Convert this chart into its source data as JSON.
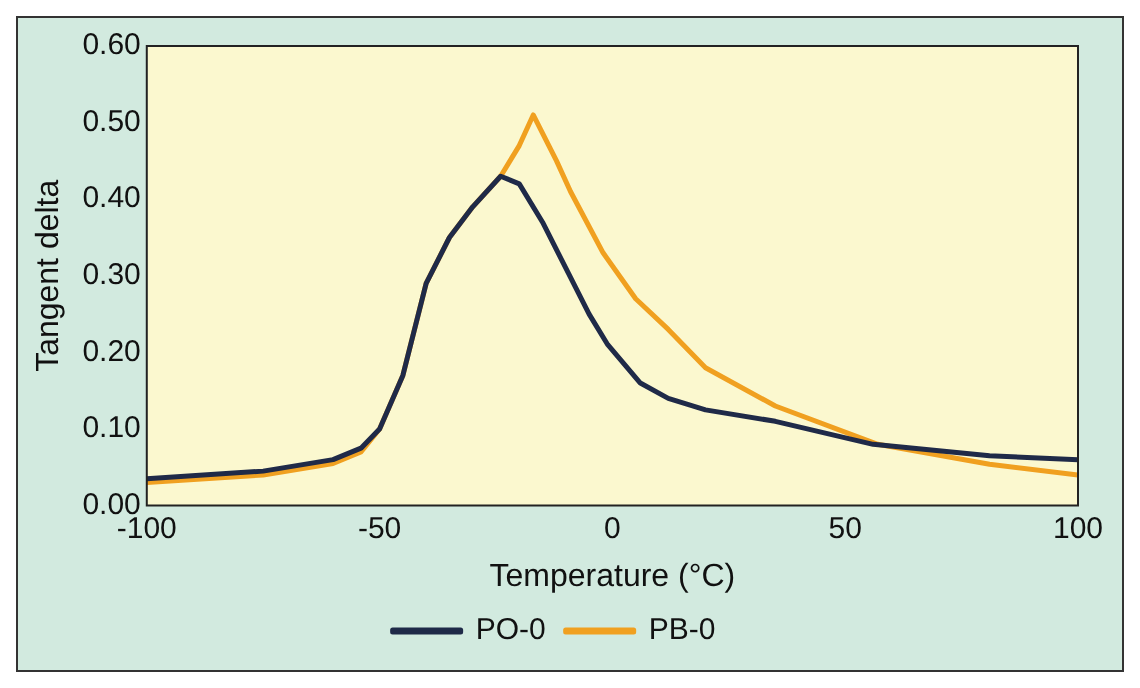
{
  "chart_data": {
    "type": "line",
    "xlabel": "Temperature (°C)",
    "ylabel": "Tangent delta",
    "xlim": [
      -100,
      100
    ],
    "xticks": [
      -100,
      -50,
      0,
      50,
      100
    ],
    "ylim": [
      0,
      0.6
    ],
    "yticks": [
      {
        "value": 0,
        "label": "0.00"
      },
      {
        "value": 0.1,
        "label": "0.10"
      },
      {
        "value": 0.2,
        "label": "0.20"
      },
      {
        "value": 0.3,
        "label": "0.30"
      },
      {
        "value": 0.4,
        "label": "0.40"
      },
      {
        "value": 0.5,
        "label": "0.50"
      },
      {
        "value": 0.6,
        "label": "0.60"
      }
    ],
    "grid": false,
    "legend": "bottom",
    "marker": "none",
    "line_style": "solid",
    "series": [
      {
        "name": "PO-0",
        "color": "#1f2a48",
        "x": [
          -100,
          -75,
          -60,
          -54,
          -50,
          -45,
          -40,
          -35,
          -30,
          -24,
          -20,
          -15,
          -10,
          -5,
          -1,
          6,
          12,
          20,
          35,
          56,
          81,
          100
        ],
        "values": [
          0.035,
          0.045,
          0.06,
          0.075,
          0.1,
          0.17,
          0.29,
          0.35,
          0.39,
          0.43,
          0.42,
          0.37,
          0.31,
          0.25,
          0.21,
          0.16,
          0.14,
          0.125,
          0.11,
          0.08,
          0.065,
          0.06
        ]
      },
      {
        "name": "PB-0",
        "color": "#f0a020",
        "x": [
          -100,
          -75,
          -60,
          -54,
          -50,
          -45,
          -40,
          -35,
          -30,
          -24,
          -20,
          -17,
          -12,
          -9,
          -2,
          5,
          12,
          20,
          35,
          57,
          81,
          100
        ],
        "values": [
          0.03,
          0.04,
          0.055,
          0.07,
          0.1,
          0.17,
          0.29,
          0.35,
          0.39,
          0.43,
          0.47,
          0.51,
          0.45,
          0.41,
          0.33,
          0.27,
          0.23,
          0.18,
          0.13,
          0.08,
          0.054,
          0.04
        ]
      }
    ]
  }
}
